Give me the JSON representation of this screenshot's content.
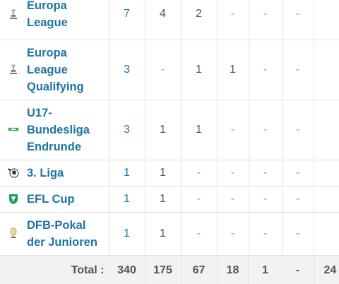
{
  "rows": [
    {
      "icon": "europa-league-trophy-icon",
      "name": "Europa League",
      "apps": "7",
      "goals": "4",
      "assists": "2",
      "own_goals": "-",
      "yellow": "-",
      "second_yellow": "-",
      "red": "-"
    },
    {
      "icon": "europa-league-trophy-icon",
      "name": "Europa League Qualifying",
      "apps": "3",
      "goals": "-",
      "assists": "1",
      "own_goals": "1",
      "yellow": "-",
      "second_yellow": "-",
      "red": "-"
    },
    {
      "icon": "u17-bundesliga-logo-icon",
      "name": "U17-Bundesliga Endrunde",
      "apps": "3",
      "goals": "1",
      "assists": "1",
      "own_goals": "-",
      "yellow": "-",
      "second_yellow": "-",
      "red": "-"
    },
    {
      "icon": "3-liga-logo-icon",
      "name": "3. Liga",
      "apps": "1",
      "goals": "1",
      "assists": "-",
      "own_goals": "-",
      "yellow": "-",
      "second_yellow": "-",
      "red": "-"
    },
    {
      "icon": "efl-cup-logo-icon",
      "name": "EFL Cup",
      "apps": "1",
      "goals": "1",
      "assists": "-",
      "own_goals": "-",
      "yellow": "-",
      "second_yellow": "-",
      "red": "-"
    },
    {
      "icon": "dfb-pokal-junioren-trophy-icon",
      "name": "DFB-Pokal der Junioren",
      "apps": "1",
      "goals": "1",
      "assists": "-",
      "own_goals": "-",
      "yellow": "-",
      "second_yellow": "-",
      "red": "-"
    }
  ],
  "total": {
    "label": "Total :",
    "apps": "340",
    "goals": "175",
    "assists": "67",
    "own_goals": "18",
    "yellow": "1",
    "second_yellow": "-",
    "red": "24"
  },
  "colors": {
    "link": "#1d75a3",
    "text": "#555555",
    "dash": "#9a9a9a",
    "border": "#e2e2e2",
    "total_bg": "#f2f2f2"
  }
}
